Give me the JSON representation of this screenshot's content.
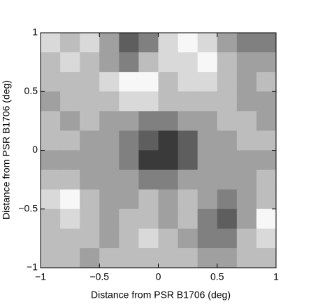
{
  "chart_data": {
    "type": "contour",
    "xlabel": "Distance from PSR B1706 (deg)",
    "ylabel": "Distance from PSR B1706 (deg)",
    "xlim": [
      -1,
      1
    ],
    "ylim": [
      -1,
      1
    ],
    "xticks": [
      {
        "value": -1,
        "label": "−1"
      },
      {
        "value": -0.5,
        "label": "−0.5"
      },
      0,
      0.5,
      1
    ],
    "yticks": [
      {
        "value": -1,
        "label": "−1"
      },
      {
        "value": -0.5,
        "label": "−0.5"
      },
      0,
      0.5,
      1
    ],
    "level_colors": [
      "#f7f7f7",
      "#d9d9d9",
      "#bdbdbd",
      "#a0a0a0",
      "#808080",
      "#5e5e5e",
      "#3a3a3a"
    ],
    "z": [
      [
        1,
        2,
        1,
        3,
        5,
        4,
        1,
        0,
        1,
        3,
        4,
        4
      ],
      [
        2,
        1,
        2,
        3,
        4,
        2,
        1,
        1,
        0,
        2,
        3,
        3
      ],
      [
        2,
        2,
        2,
        1,
        0,
        0,
        2,
        1,
        1,
        2,
        3,
        2
      ],
      [
        3,
        2,
        2,
        2,
        1,
        1,
        2,
        2,
        2,
        2,
        3,
        3
      ],
      [
        2,
        3,
        2,
        3,
        3,
        4,
        4,
        3,
        3,
        2,
        2,
        3
      ],
      [
        2,
        2,
        3,
        3,
        4,
        5,
        6,
        5,
        3,
        3,
        2,
        2
      ],
      [
        3,
        3,
        3,
        3,
        4,
        6,
        6,
        5,
        3,
        3,
        3,
        3
      ],
      [
        2,
        2,
        3,
        3,
        3,
        4,
        4,
        3,
        3,
        3,
        3,
        2
      ],
      [
        1,
        0,
        2,
        3,
        3,
        2,
        3,
        2,
        3,
        4,
        3,
        2
      ],
      [
        2,
        1,
        2,
        3,
        2,
        2,
        3,
        2,
        4,
        5,
        3,
        0
      ],
      [
        2,
        2,
        2,
        3,
        2,
        1,
        2,
        3,
        4,
        4,
        2,
        1
      ],
      [
        2,
        2,
        3,
        2,
        2,
        2,
        2,
        2,
        3,
        3,
        2,
        2
      ]
    ]
  }
}
